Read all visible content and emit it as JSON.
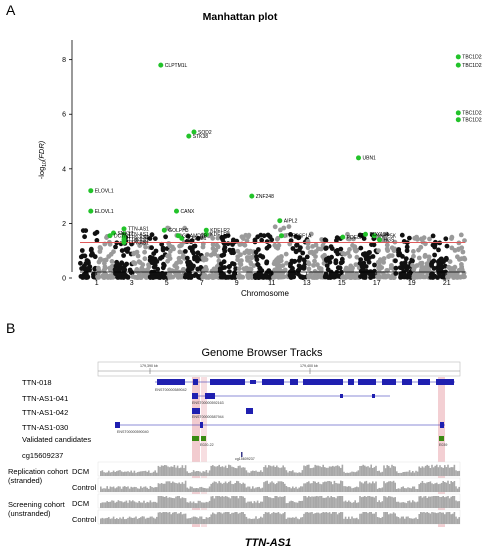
{
  "panel_a": {
    "letter": "A",
    "chart_data": {
      "type": "scatter",
      "title": "Manhattan plot",
      "xlabel": "Chromosome",
      "ylabel": "-log10(FDR)",
      "ylabel_prefix": "-log",
      "ylabel_sub": "10",
      "ylabel_suffix": "(FDR)",
      "ylim": [
        0,
        8.5
      ],
      "yticks": [
        0,
        2,
        4,
        6,
        8
      ],
      "threshold": 1.3,
      "threshold_color": "#e05a5a",
      "highlight_color": "#22c32a",
      "chromosomes": [
        "1",
        "2",
        "3",
        "4",
        "5",
        "6",
        "7",
        "8",
        "9",
        "10",
        "11",
        "12",
        "13",
        "14",
        "15",
        "16",
        "17",
        "18",
        "19",
        "20",
        "21",
        "22"
      ],
      "xtick_labels": [
        "1",
        "3",
        "5",
        "7",
        "9",
        "11",
        "13",
        "15",
        "17",
        "19",
        "21"
      ],
      "xtick_positions": [
        1,
        3,
        5,
        7,
        9,
        11,
        13,
        15,
        17,
        19,
        21
      ],
      "xtick_label_shown": [
        true,
        false,
        true,
        true,
        true,
        true,
        true,
        true,
        true,
        true,
        true,
        true,
        true,
        true,
        true,
        true,
        true,
        true,
        true,
        true,
        true
      ],
      "xtick_all_labels": [
        "1",
        "2",
        "3",
        "4",
        "5",
        "6",
        "7",
        "8",
        "9",
        "10",
        "11",
        "12",
        "13",
        "15",
        "17",
        "19",
        "21"
      ],
      "labeled_points": [
        {
          "label": "TBC1D22A",
          "chrom": 22.0,
          "y": 8.1
        },
        {
          "label": "TBC1D22A",
          "chrom": 22.0,
          "y": 7.8
        },
        {
          "label": "TBC1D22A",
          "chrom": 22.0,
          "y": 6.05
        },
        {
          "label": "TBC1D22A",
          "chrom": 22.0,
          "y": 5.8
        },
        {
          "label": "CLPTM1L",
          "chrom": 5.0,
          "y": 7.8
        },
        {
          "label": "SOD2",
          "chrom": 6.9,
          "y": 5.35
        },
        {
          "label": "STK38",
          "chrom": 6.6,
          "y": 5.2
        },
        {
          "label": "UBN1",
          "chrom": 16.3,
          "y": 4.4
        },
        {
          "label": "ELOVL1",
          "chrom": 1.0,
          "y": 3.2
        },
        {
          "label": "ELOVL1",
          "chrom": 1.0,
          "y": 2.45
        },
        {
          "label": "ZNF248",
          "chrom": 10.2,
          "y": 3.0
        },
        {
          "label": "CANX",
          "chrom": 5.9,
          "y": 2.45
        },
        {
          "label": "SNX17",
          "chrom": 2.3,
          "y": 1.65
        },
        {
          "label": "DCTN1",
          "chrom": 2.1,
          "y": 1.55
        },
        {
          "label": "TTN-AS1",
          "chrom": 2.9,
          "y": 1.8
        },
        {
          "label": "TTN-AS1",
          "chrom": 2.9,
          "y": 1.6
        },
        {
          "label": "TTN-AS1",
          "chrom": 2.9,
          "y": 1.5
        },
        {
          "label": "TTN-AS1",
          "chrom": 2.9,
          "y": 1.4
        },
        {
          "label": "TTN-AS1",
          "chrom": 2.9,
          "y": 1.3
        },
        {
          "label": "GOLPH3",
          "chrom": 5.2,
          "y": 1.75
        },
        {
          "label": "GRAMD2B",
          "chrom": 6.0,
          "y": 1.55
        },
        {
          "label": "SQSTM1",
          "chrom": 6.2,
          "y": 1.45
        },
        {
          "label": "KDELR2",
          "chrom": 7.6,
          "y": 1.75
        },
        {
          "label": "KDELR2",
          "chrom": 7.6,
          "y": 1.6
        },
        {
          "label": "AIPL2",
          "chrom": 11.8,
          "y": 2.1
        },
        {
          "label": "TNFRSF1A",
          "chrom": 11.9,
          "y": 1.55
        },
        {
          "label": "PDE8A",
          "chrom": 15.4,
          "y": 1.5
        },
        {
          "label": "DDX19A",
          "chrom": 16.7,
          "y": 1.6
        },
        {
          "label": "INPP5K",
          "chrom": 17.2,
          "y": 1.55
        },
        {
          "label": "HGS",
          "chrom": 17.5,
          "y": 1.4
        }
      ],
      "label_texts": {
        "tbc1": "TBC1D22A",
        "tbc2": "TBC1D22A",
        "tbc3": "TBC1D22A",
        "tbc4": "TBC1D22A",
        "clptm1l": "CLPTM1L",
        "sod2": "SOD2",
        "stk38": "STK38",
        "ubn1": "UBN1",
        "elovl1a": "ELOVL1",
        "elovl1b": "ELOVL1",
        "znf248": "ZNF248",
        "canx": "CANX",
        "snx17": "SNX17",
        "dctn1": "DCTN1",
        "ttn1": "TTN-AS1",
        "ttn2": "TTN-AS1",
        "ttn3": "TTN-AS1",
        "ttn4": "TTN-AS1",
        "ttn5": "TTN-AS1",
        "golph3": "GOLPH3",
        "gramd2b": "GRAMD2B",
        "sqstm1": "SQSTM1",
        "kdelr2a": "KDELR2",
        "kdelr2b": "KDELR2",
        "aipl2": "AIPL2",
        "tnfrsf1a": "TNFRSF1A",
        "pde8a": "PDE8A",
        "ddx19a": "DDX19A",
        "inpp5k": "INPP5K",
        "hgs": "HGS"
      }
    }
  },
  "panel_b": {
    "letter": "B",
    "title": "Genome Browser Tracks",
    "footer": "TTN-AS1",
    "coord_labels": [
      "179,390 kb",
      "179,400 kb"
    ],
    "tracks": [
      {
        "label": "TTN-018",
        "id_text": "ENST00000589042"
      },
      {
        "label": "TTN-AS1-041",
        "id_text": "ENST00000592163"
      },
      {
        "label": "TTN-AS1-042",
        "id_text": "ENST00000587944"
      },
      {
        "label": "TTN-AS1-030",
        "id_text": "ENST00000590040"
      },
      {
        "label": "Validated candidates",
        "id_text": "E020-22",
        "id_text2": "E039"
      },
      {
        "label": "cg15609237",
        "id_text": "cg15609237"
      }
    ],
    "cohorts": [
      {
        "name_line1": "Replication cohort",
        "name_line2": "(stranded)",
        "rows": [
          {
            "label": "DCM",
            "range": "[0-316]"
          },
          {
            "label": "Control",
            "range": "[0-99]"
          }
        ]
      },
      {
        "name_line1": "Screening cohort",
        "name_line2": "(unstranded)",
        "rows": [
          {
            "label": "DCM",
            "range": "[0-14336]"
          },
          {
            "label": "Control",
            "range": "[0-2122]"
          }
        ]
      }
    ],
    "colors": {
      "transcript": "#1f1fb0",
      "candidate": "#3a8a12",
      "highlight": "#e8a0a8",
      "coverage": "#a8a8a8"
    }
  }
}
